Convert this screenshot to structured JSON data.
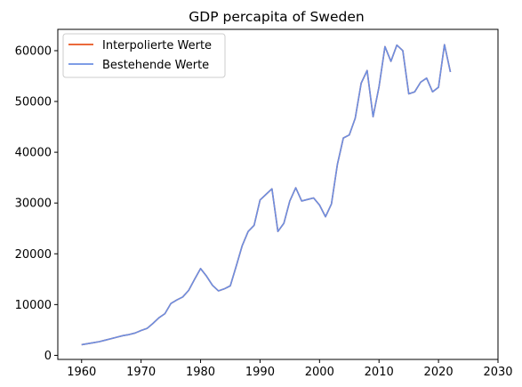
{
  "chart_data": {
    "type": "line",
    "title": "GDP percapita of Sweden",
    "xlabel": "",
    "ylabel": "",
    "xlim": [
      1956,
      2030
    ],
    "ylim": [
      -800,
      64200
    ],
    "x_ticks": [
      1960,
      1970,
      1980,
      1990,
      2000,
      2010,
      2020,
      2030
    ],
    "y_ticks": [
      0,
      10000,
      20000,
      30000,
      40000,
      50000,
      60000
    ],
    "grid": false,
    "legend_position": "upper-left",
    "series": [
      {
        "name": "Interpolierte Werte",
        "color": "#e8541f",
        "x": [
          1960,
          1961,
          1962,
          1963,
          1964,
          1965,
          1966,
          1967,
          1968,
          1969,
          1970,
          1971,
          1972,
          1973,
          1974,
          1975,
          1976,
          1977,
          1978,
          1979,
          1980,
          1981,
          1982,
          1983,
          1984,
          1985,
          1986,
          1987,
          1988,
          1989,
          1990,
          1991,
          1992,
          1993,
          1994,
          1995,
          1996,
          1997,
          1998,
          1999,
          2000,
          2001,
          2002,
          2003,
          2004,
          2005,
          2006,
          2007,
          2008,
          2009,
          2010,
          2011,
          2012,
          2013,
          2014,
          2015,
          2016,
          2017,
          2018,
          2019,
          2020,
          2021,
          2022
        ],
        "values": [
          2100,
          2300,
          2500,
          2700,
          3000,
          3300,
          3600,
          3900,
          4100,
          4400,
          4900,
          5300,
          6300,
          7400,
          8200,
          10200,
          10900,
          11500,
          12800,
          15000,
          17100,
          15600,
          13800,
          12700,
          13100,
          13700,
          17600,
          21600,
          24400,
          25600,
          30600,
          31700,
          32800,
          24400,
          26000,
          30400,
          33000,
          30400,
          30700,
          31000,
          29600,
          27300,
          29800,
          37600,
          42800,
          43400,
          46700,
          53600,
          56100,
          47000,
          52900,
          60800,
          57900,
          61100,
          60000,
          51500,
          51900,
          53800,
          54600,
          51900,
          52800,
          61200,
          55800
        ]
      },
      {
        "name": "Bestehende Werte",
        "color": "#6b8fe3",
        "x": [
          1960,
          1961,
          1962,
          1963,
          1964,
          1965,
          1966,
          1967,
          1968,
          1969,
          1970,
          1971,
          1972,
          1973,
          1974,
          1975,
          1976,
          1977,
          1978,
          1979,
          1980,
          1981,
          1982,
          1983,
          1984,
          1985,
          1986,
          1987,
          1988,
          1989,
          1990,
          1991,
          1992,
          1993,
          1994,
          1995,
          1996,
          1997,
          1998,
          1999,
          2000,
          2001,
          2002,
          2003,
          2004,
          2005,
          2006,
          2007,
          2008,
          2009,
          2010,
          2011,
          2012,
          2013,
          2014,
          2015,
          2016,
          2017,
          2018,
          2019,
          2020,
          2021,
          2022
        ],
        "values": [
          2100,
          2300,
          2500,
          2700,
          3000,
          3300,
          3600,
          3900,
          4100,
          4400,
          4900,
          5300,
          6300,
          7400,
          8200,
          10200,
          10900,
          11500,
          12800,
          15000,
          17100,
          15600,
          13800,
          12700,
          13100,
          13700,
          17600,
          21600,
          24400,
          25600,
          30600,
          31700,
          32800,
          24400,
          26000,
          30400,
          33000,
          30400,
          30700,
          31000,
          29600,
          27300,
          29800,
          37600,
          42800,
          43400,
          46700,
          53600,
          56100,
          47000,
          52900,
          60800,
          57900,
          61100,
          60000,
          51500,
          51900,
          53800,
          54600,
          51900,
          52800,
          61200,
          55800
        ]
      }
    ]
  }
}
